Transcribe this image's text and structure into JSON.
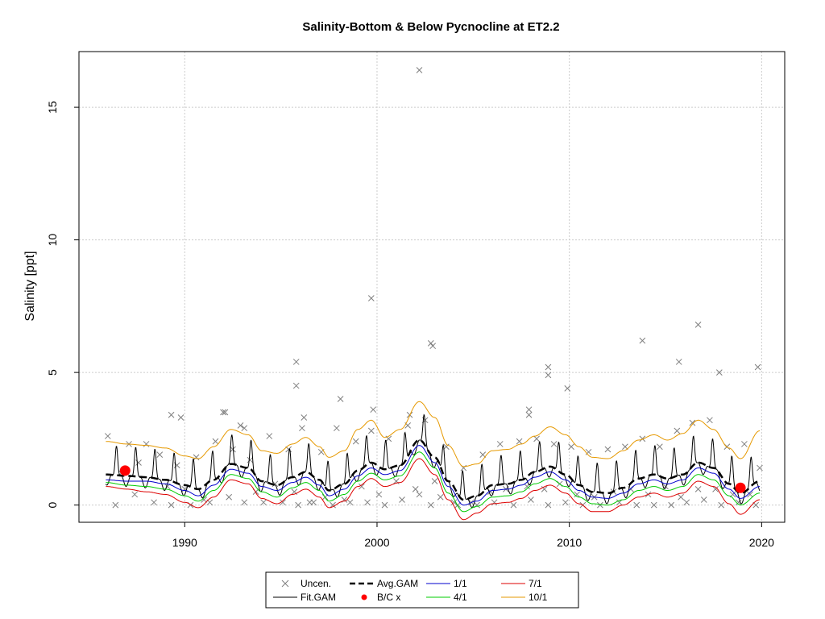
{
  "chart_data": {
    "type": "line",
    "title": "Salinity-Bottom & Below Pycnocline at ET2.2",
    "ylabel": "Salinity [ppt]",
    "xlabel": "",
    "xlim": [
      1984.5,
      2021.2
    ],
    "ylim": [
      -0.65,
      17.1
    ],
    "xticks": [
      "1990",
      "2000",
      "2010",
      "2020"
    ],
    "yticks": [
      "0",
      "5",
      "10",
      "15"
    ],
    "grid": true,
    "legend_position": "bottom",
    "legend": [
      {
        "label": "Uncen.",
        "kind": "x-marker",
        "color": "#7f7f7f"
      },
      {
        "label": "Fit.GAM",
        "kind": "line",
        "color": "#000000"
      },
      {
        "label": "Avg.GAM",
        "kind": "dashed-line",
        "color": "#000000"
      },
      {
        "label": "B/C x",
        "kind": "red-dot",
        "color": "#ff0000"
      },
      {
        "label": "1/1",
        "kind": "line",
        "color": "#0000cc"
      },
      {
        "label": "4/1",
        "kind": "line",
        "color": "#00cc00"
      },
      {
        "label": "7/1",
        "kind": "line",
        "color": "#dd0000"
      },
      {
        "label": "10/1",
        "kind": "line",
        "color": "#e69900"
      }
    ],
    "series": {
      "avg_gam": {
        "x": [
          1985.9,
          1987,
          1988,
          1989,
          1990,
          1990.7,
          1991.5,
          1992.4,
          1993.3,
          1994,
          1994.8,
          1995.6,
          1996.3,
          1997,
          1997.5,
          1998.3,
          1999,
          1999.7,
          2000.4,
          2001.2,
          2002.2,
          2003,
          2003.7,
          2004.5,
          2005.2,
          2006,
          2006.8,
          2007.5,
          2008.2,
          2009,
          2009.8,
          2010.5,
          2011.2,
          2012,
          2012.8,
          2013.6,
          2014.4,
          2015.1,
          2015.9,
          2016.7,
          2017.5,
          2018.3,
          2018.9,
          2019.9
        ],
        "y": [
          1.15,
          1.1,
          1.05,
          0.95,
          0.75,
          0.6,
          0.95,
          1.55,
          1.4,
          0.9,
          0.75,
          1.05,
          1.25,
          0.95,
          0.55,
          0.8,
          1.3,
          1.6,
          1.35,
          1.5,
          2.45,
          1.8,
          0.9,
          0.2,
          0.35,
          0.75,
          0.8,
          0.95,
          1.25,
          1.45,
          1.15,
          0.75,
          0.5,
          0.45,
          0.65,
          1.0,
          1.15,
          1.0,
          1.15,
          1.6,
          1.4,
          0.8,
          0.45,
          0.9
        ]
      },
      "season_1_1": {
        "x": [
          1985.9,
          1987,
          1988,
          1989,
          1990,
          1990.7,
          1991.5,
          1992.4,
          1993.3,
          1994,
          1994.8,
          1995.6,
          1996.3,
          1997,
          1997.5,
          1998.3,
          1999,
          1999.7,
          2000.4,
          2001.2,
          2002.2,
          2003,
          2003.7,
          2004.5,
          2005.2,
          2006,
          2006.8,
          2007.5,
          2008.2,
          2009,
          2009.8,
          2010.5,
          2011.2,
          2012,
          2012.8,
          2013.6,
          2014.4,
          2015.1,
          2015.9,
          2016.7,
          2017.5,
          2018.3,
          2018.9,
          2019.9
        ],
        "y": [
          0.95,
          0.9,
          0.9,
          0.8,
          0.55,
          0.35,
          0.75,
          1.35,
          1.2,
          0.7,
          0.55,
          0.85,
          1.05,
          0.75,
          0.35,
          0.6,
          1.1,
          1.4,
          1.15,
          1.3,
          2.25,
          1.6,
          0.7,
          0.0,
          0.15,
          0.55,
          0.6,
          0.75,
          1.05,
          1.25,
          0.95,
          0.55,
          0.3,
          0.25,
          0.45,
          0.8,
          0.95,
          0.8,
          0.95,
          1.4,
          1.2,
          0.6,
          0.25,
          0.7
        ]
      },
      "season_4_1": {
        "x": [
          1985.9,
          1987,
          1988,
          1989,
          1990,
          1990.7,
          1991.5,
          1992.4,
          1993.3,
          1994,
          1994.8,
          1995.6,
          1996.3,
          1997,
          1997.5,
          1998.3,
          1999,
          1999.7,
          2000.4,
          2001.2,
          2002.2,
          2003,
          2003.7,
          2004.5,
          2005.2,
          2006,
          2006.8,
          2007.5,
          2008.2,
          2009,
          2009.8,
          2010.5,
          2011.2,
          2012,
          2012.8,
          2013.6,
          2014.4,
          2015.1,
          2015.9,
          2016.7,
          2017.5,
          2018.3,
          2018.9,
          2019.9
        ],
        "y": [
          0.85,
          0.75,
          0.7,
          0.6,
          0.35,
          0.15,
          0.55,
          1.15,
          1.0,
          0.5,
          0.3,
          0.65,
          0.85,
          0.55,
          0.15,
          0.4,
          0.9,
          1.2,
          0.95,
          1.1,
          2.0,
          1.4,
          0.45,
          -0.25,
          -0.05,
          0.3,
          0.35,
          0.5,
          0.8,
          1.0,
          0.7,
          0.3,
          0.05,
          0.0,
          0.2,
          0.55,
          0.7,
          0.55,
          0.7,
          1.15,
          0.95,
          0.35,
          0.0,
          0.45
        ]
      },
      "season_7_1": {
        "x": [
          1985.9,
          1987,
          1988,
          1989,
          1990,
          1990.7,
          1991.5,
          1992.4,
          1993.3,
          1994,
          1994.8,
          1995.6,
          1996.3,
          1997,
          1997.5,
          1998.3,
          1999,
          1999.7,
          2000.4,
          2001.2,
          2002.2,
          2003,
          2003.7,
          2004.5,
          2005.2,
          2006,
          2006.8,
          2007.5,
          2008.2,
          2009,
          2009.8,
          2010.5,
          2011.2,
          2012,
          2012.8,
          2013.6,
          2014.4,
          2015.1,
          2015.9,
          2016.7,
          2017.5,
          2018.3,
          2018.9,
          2019.9
        ],
        "y": [
          0.7,
          0.6,
          0.5,
          0.4,
          0.1,
          -0.1,
          0.3,
          0.95,
          0.8,
          0.25,
          0.05,
          0.4,
          0.6,
          0.3,
          -0.1,
          0.15,
          0.7,
          1.0,
          0.7,
          0.85,
          1.75,
          1.15,
          0.2,
          -0.55,
          -0.3,
          0.05,
          0.1,
          0.25,
          0.55,
          0.75,
          0.45,
          0.05,
          -0.25,
          -0.25,
          0.0,
          0.3,
          0.45,
          0.3,
          0.45,
          0.9,
          0.7,
          0.05,
          -0.35,
          0.2
        ]
      },
      "season_10_1": {
        "x": [
          1985.9,
          1987,
          1988,
          1989,
          1990,
          1990.7,
          1991.5,
          1992.4,
          1993.3,
          1994,
          1994.8,
          1995.6,
          1996.3,
          1997,
          1997.5,
          1998.3,
          1999,
          1999.7,
          2000.4,
          2001.2,
          2002.2,
          2003,
          2003.7,
          2004.5,
          2005.2,
          2006,
          2006.8,
          2007.5,
          2008.2,
          2009,
          2009.8,
          2010.5,
          2011.2,
          2012,
          2012.8,
          2013.6,
          2014.4,
          2015.1,
          2015.9,
          2016.7,
          2017.5,
          2018.3,
          2018.9,
          2019.9
        ],
        "y": [
          2.4,
          2.3,
          2.25,
          2.15,
          1.85,
          1.75,
          2.2,
          2.85,
          2.65,
          2.05,
          1.95,
          2.3,
          2.55,
          2.2,
          1.8,
          2.05,
          2.85,
          3.2,
          2.55,
          2.85,
          3.9,
          3.3,
          2.25,
          1.45,
          1.55,
          2.05,
          2.1,
          2.3,
          2.6,
          2.95,
          2.65,
          2.2,
          1.8,
          1.75,
          2.05,
          2.45,
          2.65,
          2.45,
          2.7,
          3.2,
          2.85,
          2.15,
          1.75,
          2.8
        ]
      },
      "fit_gam_peaks_per_year": 2,
      "fit_gam_peak_offset": 0.45,
      "fit_gam_peak_add": 1.1,
      "fit_gam_trough_sub": 0.4,
      "bc_points": {
        "x": [
          1986.9,
          2018.9
        ],
        "y": [
          1.3,
          0.65
        ]
      },
      "uncensored": {
        "x": [
          1986.0,
          1986.4,
          1986.7,
          1987.1,
          1987.4,
          1987.6,
          1988.0,
          1988.4,
          1988.7,
          1989.1,
          1989.3,
          1989.6,
          1990.0,
          1990.3,
          1990.6,
          1991.0,
          1991.3,
          1991.6,
          1992.0,
          1992.3,
          1992.5,
          1992.9,
          1993.1,
          1993.4,
          1993.7,
          1994.1,
          1994.4,
          1994.7,
          1995.1,
          1995.4,
          1995.7,
          1995.9,
          1996.1,
          1996.5,
          1996.7,
          1997.1,
          1997.3,
          1997.7,
          1997.9,
          1998.3,
          1998.6,
          1998.9,
          1999.2,
          1999.5,
          1999.7,
          2000.1,
          2000.4,
          2000.6,
          2001.0,
          2001.3,
          2001.6,
          2002.0,
          2002.2,
          2002.5,
          2002.8,
          2003.0,
          2003.3,
          2003.6,
          2004.0,
          2004.2,
          2004.5,
          2004.9,
          2005.2,
          2005.5,
          2005.9,
          2006.1,
          2006.4,
          2006.7,
          2007.1,
          2007.4,
          2007.8,
          2008.0,
          2008.3,
          2008.7,
          2008.9,
          2009.2,
          2009.5,
          2009.8,
          2010.1,
          2010.4,
          2010.7,
          2011.0,
          2011.3,
          2011.6,
          2012.0,
          2012.3,
          2012.6,
          2012.9,
          2013.2,
          2013.5,
          2013.8,
          2014.1,
          2014.4,
          2014.7,
          2015.0,
          2015.3,
          2015.6,
          2015.8,
          2016.1,
          2016.4,
          2016.7,
          2017.0,
          2017.3,
          2017.6,
          2017.9,
          2018.2,
          2018.5,
          2018.8,
          2019.1,
          2019.4,
          2019.7,
          2019.9,
          2002.2,
          1999.7,
          2002.8,
          2002.9,
          1995.8,
          1995.8,
          2008.9,
          2008.9,
          2009.9,
          2013.8,
          2015.7,
          2016.7,
          2017.8,
          2019.8,
          1989.3,
          1989.8,
          1998.1,
          1999.8,
          2007.9,
          2007.9,
          1992.1,
          1993.1,
          1996.2,
          2001.7
        ],
        "y": [
          2.6,
          0.0,
          1.2,
          2.3,
          0.4,
          1.6,
          2.3,
          0.1,
          1.9,
          0.7,
          0.0,
          1.5,
          0.6,
          0.0,
          1.8,
          0.2,
          0.1,
          2.4,
          3.5,
          0.3,
          2.1,
          3.0,
          0.1,
          1.7,
          0.5,
          0.1,
          2.6,
          0.8,
          0.1,
          2.1,
          0.5,
          0.0,
          2.9,
          0.1,
          0.1,
          2.0,
          0.3,
          0.0,
          2.9,
          0.2,
          0.1,
          2.4,
          0.7,
          0.1,
          2.8,
          0.4,
          0.0,
          2.5,
          0.9,
          0.2,
          3.0,
          0.6,
          0.4,
          3.2,
          0.0,
          0.9,
          0.3,
          2.2,
          0.1,
          0.0,
          1.4,
          0.1,
          0.0,
          1.9,
          0.5,
          0.1,
          2.3,
          0.6,
          0.0,
          2.4,
          0.7,
          0.2,
          2.5,
          0.6,
          0.0,
          2.3,
          0.8,
          0.1,
          2.2,
          0.4,
          0.0,
          2.0,
          0.3,
          0.0,
          2.1,
          0.5,
          0.1,
          2.2,
          0.6,
          0.0,
          2.5,
          0.4,
          0.0,
          2.2,
          0.7,
          0.0,
          2.8,
          0.3,
          0.1,
          3.1,
          0.6,
          0.2,
          3.2,
          0.6,
          0.0,
          2.2,
          0.4,
          0.1,
          2.3,
          0.4,
          0.0,
          1.4,
          16.4,
          7.8,
          6.1,
          6.0,
          5.4,
          4.5,
          5.2,
          4.9,
          4.4,
          6.2,
          5.4,
          6.8,
          5.0,
          5.2,
          3.4,
          3.3,
          4.0,
          3.6,
          3.6,
          3.4,
          3.5,
          2.9,
          3.3,
          3.4
        ]
      }
    }
  }
}
